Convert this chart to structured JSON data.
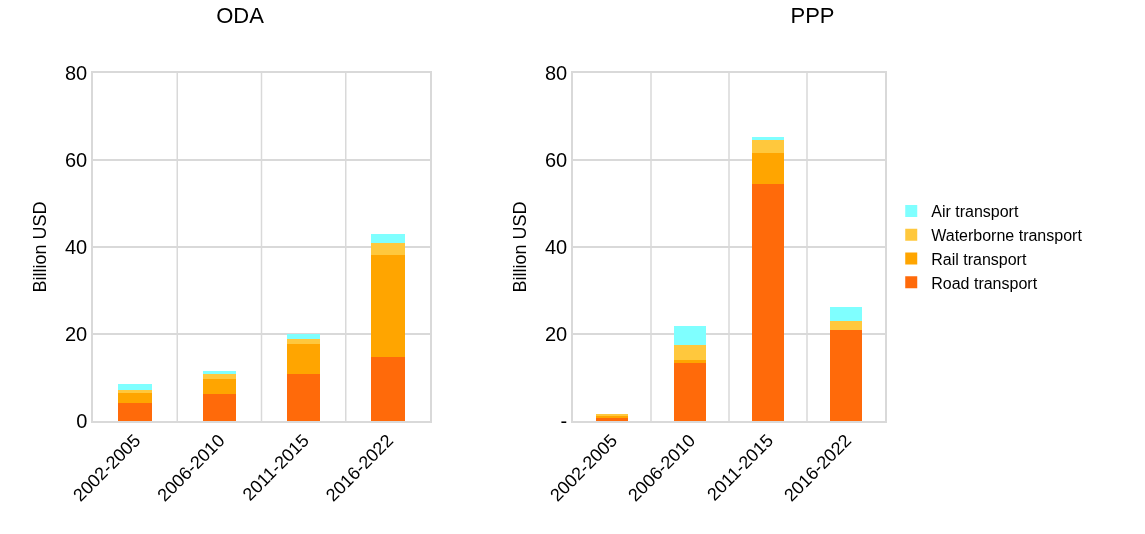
{
  "chart_data": [
    {
      "type": "bar",
      "title": "ODA",
      "ylabel": "Billion USD",
      "categories": [
        "2002-2005",
        "2006-2010",
        "2011-2015",
        "2016-2022"
      ],
      "stacked": true,
      "series": [
        {
          "color": "#ff6a0a",
          "values": [
            4.2,
            6.1,
            10.9,
            14.6
          ]
        },
        {
          "color": "#ffa500",
          "values": [
            2.3,
            3.6,
            6.9,
            23.6
          ]
        },
        {
          "color": "#ffc83d",
          "values": [
            0.6,
            1.0,
            1.1,
            2.7
          ]
        },
        {
          "color": "#7fffff",
          "values": [
            1.3,
            0.7,
            1.2,
            2.2
          ]
        }
      ],
      "ylim": [
        0,
        80
      ],
      "yticks": [
        0,
        20,
        40,
        60,
        80
      ],
      "grid": true,
      "legend": false
    },
    {
      "type": "bar",
      "title": "PPP",
      "ylabel": "Billion USD",
      "categories": [
        "2002-2005",
        "2006-2010",
        "2011-2015",
        "2016-2022"
      ],
      "stacked": true,
      "series": [
        {
          "name": "Road transport",
          "color": "#ff6a0a",
          "values": [
            0.9,
            13.4,
            54.4,
            20.9
          ]
        },
        {
          "name": "Rail transport",
          "color": "#ffa500",
          "values": [
            0.2,
            0.6,
            7.3,
            null
          ]
        },
        {
          "name": "Waterborne transport",
          "color": "#ffc83d",
          "values": [
            0.5,
            3.4,
            2.8,
            2.2
          ]
        },
        {
          "name": "Air transport",
          "color": "#7fffff",
          "values": [
            null,
            4.4,
            0.7,
            3.0
          ]
        }
      ],
      "ylim": [
        0,
        80
      ],
      "yticks": [
        {
          "value": 0,
          "label": "-"
        },
        20,
        40,
        60,
        80
      ],
      "grid": true,
      "legend": "right"
    }
  ]
}
